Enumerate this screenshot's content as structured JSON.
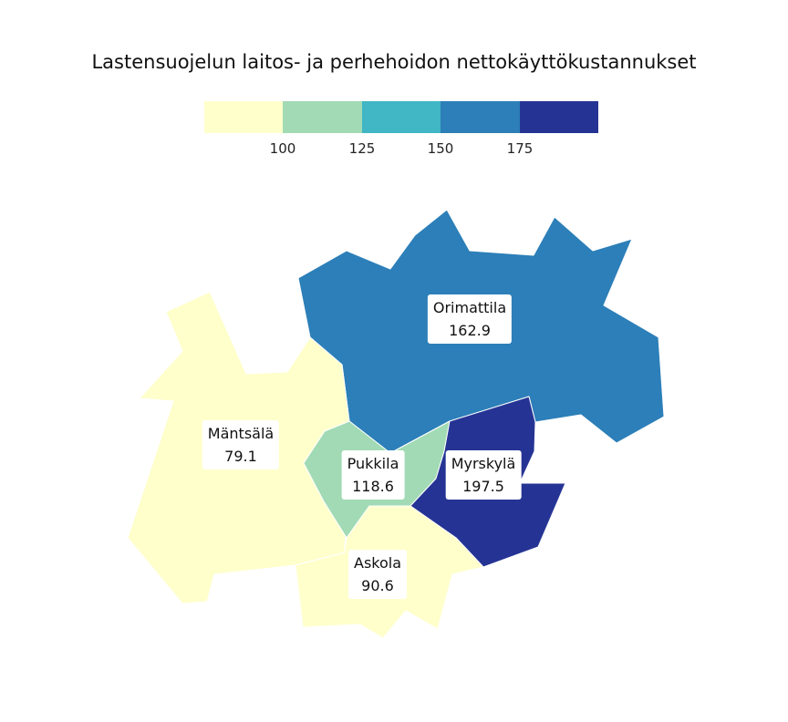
{
  "title": "Lastensuojelun laitos- ja perhehoidon nettokäyttökustannukset",
  "legend": {
    "colors": [
      "#ffffcc",
      "#a1dab4",
      "#41b6c4",
      "#2c7fb8",
      "#253494"
    ],
    "ticks": [
      "100",
      "125",
      "150",
      "175"
    ]
  },
  "regions": [
    {
      "name": "Orimattila",
      "value": "162.9",
      "color": "#2c7fb8"
    },
    {
      "name": "Mäntsälä",
      "value": "79.1",
      "color": "#ffffcc"
    },
    {
      "name": "Pukkila",
      "value": "118.6",
      "color": "#a1dab4"
    },
    {
      "name": "Myrskylä",
      "value": "197.5",
      "color": "#253494"
    },
    {
      "name": "Askola",
      "value": "90.6",
      "color": "#ffffcc"
    }
  ]
}
